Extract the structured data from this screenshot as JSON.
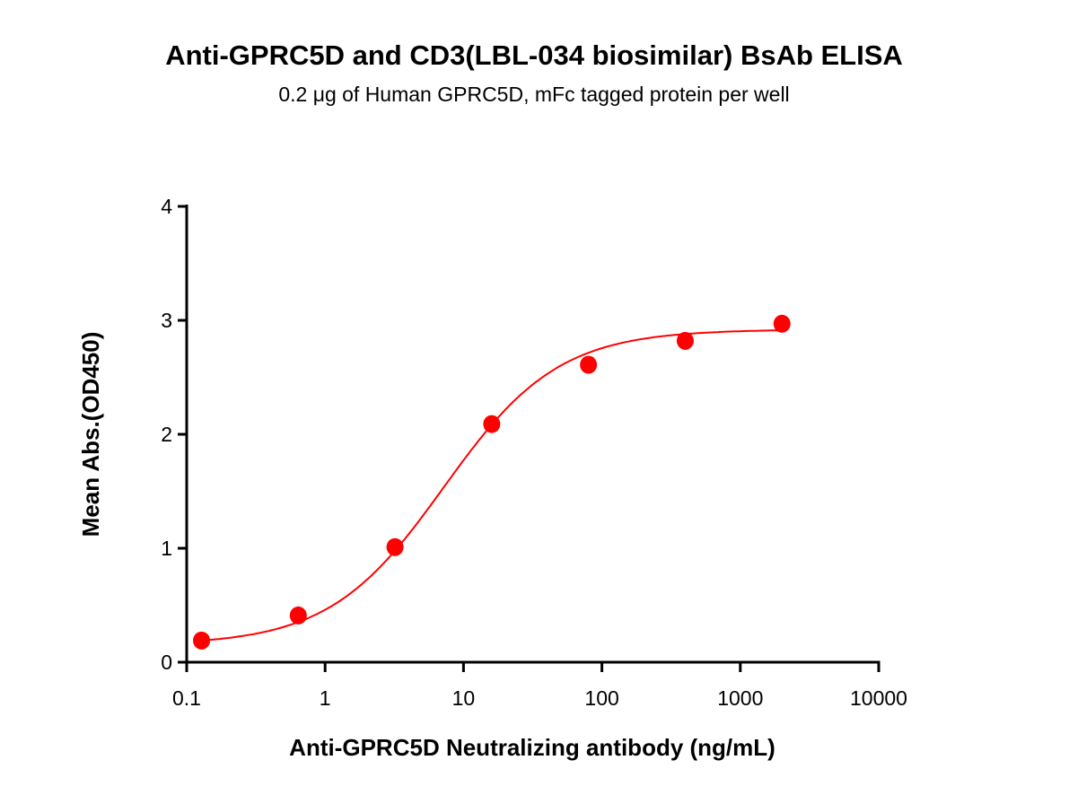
{
  "chart_data": {
    "type": "scatter",
    "title": "Anti-GPRC5D and CD3(LBL-034 biosimilar) BsAb ELISA",
    "subtitle": "0.2 μg of Human GPRC5D, mFc tagged protein per well",
    "xlabel": "Anti-GPRC5D Neutralizing antibody (ng/mL)",
    "ylabel": "Mean Abs.(OD450)",
    "xscale": "log",
    "xlim": [
      0.1,
      10000
    ],
    "ylim": [
      0,
      4
    ],
    "xticks": [
      "0.1",
      "1",
      "10",
      "100",
      "1000",
      "10000"
    ],
    "yticks": [
      "0",
      "1",
      "2",
      "3",
      "4"
    ],
    "grid": false,
    "color": "#ff0000",
    "fit_curve": "4PL sigmoid",
    "points": [
      {
        "x": 0.128,
        "y": 0.19
      },
      {
        "x": 0.64,
        "y": 0.41
      },
      {
        "x": 3.2,
        "y": 1.01
      },
      {
        "x": 16,
        "y": 2.09
      },
      {
        "x": 80,
        "y": 2.61
      },
      {
        "x": 400,
        "y": 2.82
      },
      {
        "x": 2000,
        "y": 2.97
      }
    ]
  }
}
